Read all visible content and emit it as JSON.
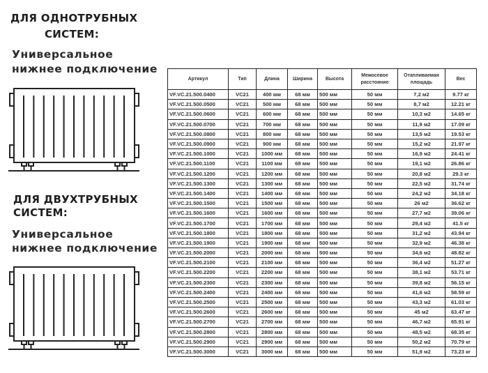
{
  "section_one": {
    "title_line1": "ДЛЯ ОДНОТРУБНЫХ",
    "title_line2": "СИСТЕМ:",
    "subtitle_line1": "Универсальное",
    "subtitle_line2": "нижнее подключение",
    "icon": "radiator-icon"
  },
  "section_two": {
    "title_line1": "ДЛЯ ДВУХТРУБНЫХ",
    "title_line2": "СИСТЕМ:",
    "subtitle_line1": "Универсальное",
    "subtitle_line2": "нижнее подключение",
    "icon": "radiator-icon"
  },
  "table": {
    "headers": [
      "Артикул",
      "Тип",
      "Длина",
      "Ширина",
      "Высота",
      "Межосевое расстояние",
      "Отапливаемая площадь",
      "Вес"
    ],
    "rows": [
      [
        "VF.VC.21.500.0400",
        "VC21",
        "400 мм",
        "68 мм",
        "500 мм",
        "50 мм",
        "7,2 м2",
        "9.77 кг"
      ],
      [
        "VF.VC.21.500.0500",
        "VC21",
        "500 мм",
        "68 мм",
        "500 мм",
        "50 мм",
        "8,7 м2",
        "12.21 кг"
      ],
      [
        "VF.VC.21.500.0600",
        "VC21",
        "600 мм",
        "68 мм",
        "500 мм",
        "50 мм",
        "10,3 м2",
        "14.65 кг"
      ],
      [
        "VF.VC.21.500.0700",
        "VC21",
        "700 мм",
        "68 мм",
        "500 мм",
        "50 мм",
        "11,9 м2",
        "17.09 кг"
      ],
      [
        "VF.VC.21.500.0800",
        "VC21",
        "800 мм",
        "68 мм",
        "500 мм",
        "50 мм",
        "13,5 м2",
        "19.53 кг"
      ],
      [
        "VF.VC.21.500.0900",
        "VC21",
        "900 мм",
        "68 мм",
        "500 мм",
        "50 мм",
        "15,2 м2",
        "21.97 кг"
      ],
      [
        "VF.VC.21.500.1000",
        "VC21",
        "1000 мм",
        "68 мм",
        "500 мм",
        "50 мм",
        "16,9 м2",
        "24.41 кг"
      ],
      [
        "VF.VC.21.500.1100",
        "VC21",
        "1100 мм",
        "68 мм",
        "500 мм",
        "50 мм",
        "19,1 м2",
        "26.86 кг"
      ],
      [
        "VF.VC.21.500.1200",
        "VC21",
        "1200 мм",
        "68 мм",
        "500 мм",
        "50 мм",
        "20,8 м2",
        "29.3 кг"
      ],
      [
        "VF.VC.21.500.1300",
        "VC21",
        "1300 мм",
        "68 мм",
        "500 мм",
        "50 мм",
        "22,5 м2",
        "31.74 кг"
      ],
      [
        "VF.VC.21.500.1400",
        "VC21",
        "1400 мм",
        "68 мм",
        "500 мм",
        "50 мм",
        "24,2 м2",
        "34.18 кг"
      ],
      [
        "VF.VC.21.500.1500",
        "VC21",
        "1500 мм",
        "68 мм",
        "500 мм",
        "50 мм",
        "26 м2",
        "36.62 кг"
      ],
      [
        "VF.VC.21.500.1600",
        "VC21",
        "1600 мм",
        "68 мм",
        "500 мм",
        "50 мм",
        "27,7 м2",
        "39.06 кг"
      ],
      [
        "VF.VC.21.500.1700",
        "VC21",
        "1700 мм",
        "68 мм",
        "500 мм",
        "50 мм",
        "29,4 м2",
        "41.5 кг"
      ],
      [
        "VF.VC.21.500.1800",
        "VC21",
        "1800 мм",
        "68 мм",
        "500 мм",
        "50 мм",
        "31,2 м2",
        "43.94 кг"
      ],
      [
        "VF.VC.21.500.1900",
        "VC21",
        "1900 мм",
        "68 мм",
        "500 мм",
        "50 мм",
        "32,9 м2",
        "46.38 кг"
      ],
      [
        "VF.VC.21.500.2000",
        "VC21",
        "2000 мм",
        "68 мм",
        "500 мм",
        "50 мм",
        "34,6 м2",
        "48.82 кг"
      ],
      [
        "VF.VC.21.500.2100",
        "VC21",
        "2100 мм",
        "68 мм",
        "500 мм",
        "50 мм",
        "36,4 м2",
        "51.27 кг"
      ],
      [
        "VF.VC.21.500.2200",
        "VC21",
        "2200 мм",
        "68 мм",
        "500 мм",
        "50 мм",
        "38,1 м2",
        "53.71 кг"
      ],
      [
        "VF.VC.21.500.2300",
        "VC21",
        "2300 мм",
        "68 мм",
        "500 мм",
        "50 мм",
        "39,8 м2",
        "56.15 кг"
      ],
      [
        "VF.VC.21.500.2400",
        "VC21",
        "2400 мм",
        "68 мм",
        "500 мм",
        "50 мм",
        "41,6 м2",
        "58.59 кг"
      ],
      [
        "VF.VC.21.500.2500",
        "VC21",
        "2500 мм",
        "68 мм",
        "500 мм",
        "50 мм",
        "43,3 м2",
        "61.03 кг"
      ],
      [
        "VF.VC.21.500.2600",
        "VC21",
        "2600 мм",
        "68 мм",
        "500 мм",
        "50 мм",
        "45 м2",
        "63.47 кг"
      ],
      [
        "VF.VC.21.500.2700",
        "VC21",
        "2700 мм",
        "68 мм",
        "500 мм",
        "50 мм",
        "46,7 м2",
        "65.91 кг"
      ],
      [
        "VF.VC.21.500.2800",
        "VC21",
        "2800 мм",
        "68 мм",
        "500 мм",
        "50 мм",
        "48,5 м2",
        "68.35 кг"
      ],
      [
        "VF.VC.21.500.2900",
        "VC21",
        "2900 мм",
        "68 мм",
        "500 мм",
        "50 мм",
        "50,2 м2",
        "70.79 кг"
      ],
      [
        "VF.VC.21.500.3000",
        "VC21",
        "3000 мм",
        "68 мм",
        "500 мм",
        "50 мм",
        "51,9 м2",
        "73.23 кг"
      ]
    ]
  }
}
